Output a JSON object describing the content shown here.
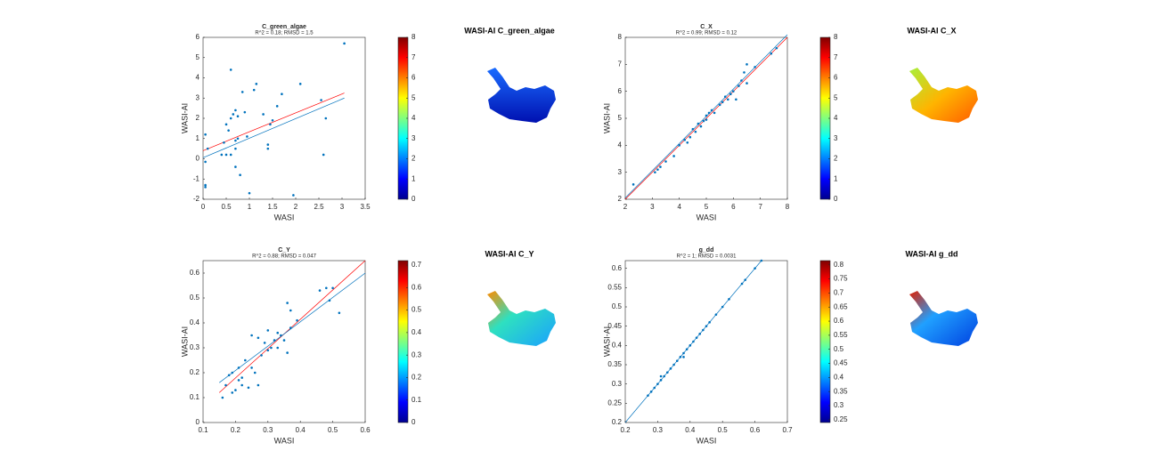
{
  "chart_data": [
    {
      "type": "scatter",
      "title": "C_green_algae",
      "subtitle": "R^2 = 0.18; RMSD = 1.5",
      "xlabel": "WASI",
      "ylabel": "WASI-AI",
      "color": "#0072bd",
      "x": [
        0.05,
        0.1,
        0.05,
        0.05,
        0.05,
        0.4,
        0.45,
        0.5,
        0.5,
        0.55,
        0.6,
        0.6,
        0.65,
        0.7,
        0.7,
        0.7,
        0.75,
        0.75,
        0.8,
        0.85,
        0.9,
        0.95,
        1.0,
        1.1,
        1.15,
        1.3,
        1.4,
        1.4,
        1.45,
        1.5,
        1.6,
        1.7,
        1.95,
        2.1,
        2.55,
        2.6,
        2.65,
        3.05,
        0.6,
        0.7
      ],
      "y": [
        1.2,
        0.5,
        -1.3,
        -1.4,
        -0.15,
        0.2,
        0.8,
        1.7,
        0.2,
        1.4,
        4.4,
        2.0,
        2.2,
        2.4,
        0.5,
        -0.4,
        1.0,
        2.1,
        -0.8,
        3.3,
        2.3,
        1.1,
        -1.7,
        3.4,
        3.7,
        2.2,
        0.5,
        0.7,
        1.7,
        1.9,
        2.6,
        3.2,
        -1.8,
        3.7,
        2.9,
        0.2,
        2.0,
        5.7,
        0.2,
        0.9
      ],
      "fit_lines": [
        {
          "color": "#ff0000",
          "x": [
            0,
            3.05
          ],
          "y": [
            0.4,
            3.25
          ]
        },
        {
          "color": "#0072bd",
          "x": [
            0,
            3.05
          ],
          "y": [
            0.05,
            3.0
          ]
        }
      ],
      "xlim": [
        0,
        3.5
      ],
      "xticks": [
        0,
        0.5,
        1,
        1.5,
        2,
        2.5,
        3,
        3.5
      ],
      "ylim": [
        -2,
        6
      ],
      "yticks": [
        -2,
        -1,
        0,
        1,
        2,
        3,
        4,
        5,
        6
      ],
      "colorbar": {
        "colormap": "jet",
        "lim": [
          0,
          8
        ],
        "ticks": [
          0,
          1,
          2,
          3,
          4,
          5,
          6,
          7,
          8
        ]
      },
      "map_title": "WASI-AI C_green_algae"
    },
    {
      "type": "scatter",
      "title": "C_X",
      "subtitle": "R^2 = 0.99; RMSD = 0.12",
      "xlabel": "WASI",
      "ylabel": "WASI-AI",
      "color": "#0072bd",
      "x": [
        2.3,
        3.1,
        3.2,
        3.3,
        3.5,
        3.8,
        4.0,
        4.2,
        4.3,
        4.4,
        4.5,
        4.6,
        4.7,
        4.8,
        4.9,
        5.0,
        5.0,
        5.1,
        5.2,
        5.3,
        5.5,
        5.6,
        5.7,
        5.8,
        5.9,
        6.0,
        6.1,
        6.2,
        6.3,
        6.4,
        6.5,
        6.5,
        6.8,
        7.6,
        7.4
      ],
      "y": [
        2.55,
        3.0,
        3.1,
        3.2,
        3.4,
        3.6,
        4.0,
        4.2,
        4.1,
        4.3,
        4.6,
        4.5,
        4.8,
        4.7,
        4.9,
        4.95,
        5.1,
        5.2,
        5.3,
        5.2,
        5.5,
        5.6,
        5.8,
        5.7,
        5.9,
        6.0,
        5.7,
        6.2,
        6.4,
        6.7,
        7.0,
        6.3,
        6.9,
        7.6,
        7.4
      ],
      "fit_lines": [
        {
          "color": "#ff0000",
          "x": [
            2,
            8
          ],
          "y": [
            2,
            8
          ]
        },
        {
          "color": "#0072bd",
          "x": [
            2,
            8
          ],
          "y": [
            2.05,
            8.1
          ]
        }
      ],
      "xlim": [
        2,
        8
      ],
      "xticks": [
        2,
        3,
        4,
        5,
        6,
        7,
        8
      ],
      "ylim": [
        2,
        8
      ],
      "yticks": [
        2,
        3,
        4,
        5,
        6,
        7,
        8
      ],
      "colorbar": {
        "colormap": "jet",
        "lim": [
          0,
          8
        ],
        "ticks": [
          0,
          1,
          2,
          3,
          4,
          5,
          6,
          7,
          8
        ]
      },
      "map_title": "WASI-AI C_X"
    },
    {
      "type": "scatter",
      "title": "C_Y",
      "subtitle": "R^2 = 0.88; RMSD = 0.047",
      "xlabel": "WASI",
      "ylabel": "WASI-AI",
      "color": "#0072bd",
      "x": [
        0.16,
        0.17,
        0.18,
        0.19,
        0.19,
        0.2,
        0.21,
        0.21,
        0.22,
        0.23,
        0.24,
        0.25,
        0.25,
        0.26,
        0.27,
        0.27,
        0.28,
        0.29,
        0.3,
        0.3,
        0.31,
        0.32,
        0.33,
        0.34,
        0.35,
        0.36,
        0.36,
        0.37,
        0.37,
        0.39,
        0.46,
        0.48,
        0.49,
        0.5,
        0.52,
        0.33,
        0.22
      ],
      "y": [
        0.1,
        0.15,
        0.19,
        0.12,
        0.2,
        0.13,
        0.17,
        0.22,
        0.15,
        0.25,
        0.14,
        0.35,
        0.22,
        0.2,
        0.15,
        0.34,
        0.27,
        0.32,
        0.29,
        0.37,
        0.3,
        0.33,
        0.3,
        0.35,
        0.33,
        0.28,
        0.48,
        0.45,
        0.38,
        0.41,
        0.53,
        0.54,
        0.49,
        0.54,
        0.44,
        0.36,
        0.18
      ],
      "fit_lines": [
        {
          "color": "#ff0000",
          "x": [
            0.15,
            0.6
          ],
          "y": [
            0.12,
            0.65
          ]
        },
        {
          "color": "#0072bd",
          "x": [
            0.15,
            0.6
          ],
          "y": [
            0.16,
            0.6
          ]
        }
      ],
      "xlim": [
        0.1,
        0.6
      ],
      "xticks": [
        0.1,
        0.2,
        0.3,
        0.4,
        0.5,
        0.6
      ],
      "ylim": [
        0,
        0.65
      ],
      "yticks": [
        0,
        0.1,
        0.2,
        0.3,
        0.4,
        0.5,
        0.6
      ],
      "colorbar": {
        "colormap": "jet",
        "lim": [
          0,
          0.72
        ],
        "ticks": [
          0,
          0.1,
          0.2,
          0.3,
          0.4,
          0.5,
          0.6,
          0.7
        ]
      },
      "map_title": "WASI-AI C_Y"
    },
    {
      "type": "scatter",
      "title": "g_dd",
      "subtitle": "R^2 = 1; RMSD = 0.0031",
      "xlabel": "WASI",
      "ylabel": "WASI-AI",
      "color": "#0072bd",
      "x": [
        0.27,
        0.28,
        0.29,
        0.3,
        0.31,
        0.32,
        0.33,
        0.34,
        0.35,
        0.36,
        0.37,
        0.38,
        0.39,
        0.4,
        0.41,
        0.42,
        0.43,
        0.44,
        0.45,
        0.46,
        0.48,
        0.5,
        0.52,
        0.56,
        0.57,
        0.6,
        0.62,
        0.31,
        0.38
      ],
      "y": [
        0.27,
        0.28,
        0.29,
        0.3,
        0.31,
        0.32,
        0.33,
        0.34,
        0.35,
        0.36,
        0.37,
        0.38,
        0.39,
        0.4,
        0.41,
        0.42,
        0.43,
        0.44,
        0.45,
        0.46,
        0.48,
        0.5,
        0.52,
        0.56,
        0.57,
        0.6,
        0.62,
        0.32,
        0.37
      ],
      "fit_lines": [
        {
          "color": "#0072bd",
          "x": [
            0.2,
            0.62
          ],
          "y": [
            0.2,
            0.62
          ]
        }
      ],
      "xlim": [
        0.2,
        0.7
      ],
      "xticks": [
        0.2,
        0.3,
        0.4,
        0.5,
        0.6,
        0.7
      ],
      "ylim": [
        0.2,
        0.62
      ],
      "yticks": [
        0.2,
        0.25,
        0.3,
        0.35,
        0.4,
        0.45,
        0.5,
        0.55,
        0.6
      ],
      "colorbar": {
        "colormap": "jet",
        "lim": [
          0.24,
          0.815
        ],
        "ticks": [
          0.25,
          0.3,
          0.35,
          0.4,
          0.45,
          0.5,
          0.55,
          0.6,
          0.65,
          0.7,
          0.75,
          0.8
        ]
      },
      "map_title": "WASI-AI g_dd"
    }
  ]
}
